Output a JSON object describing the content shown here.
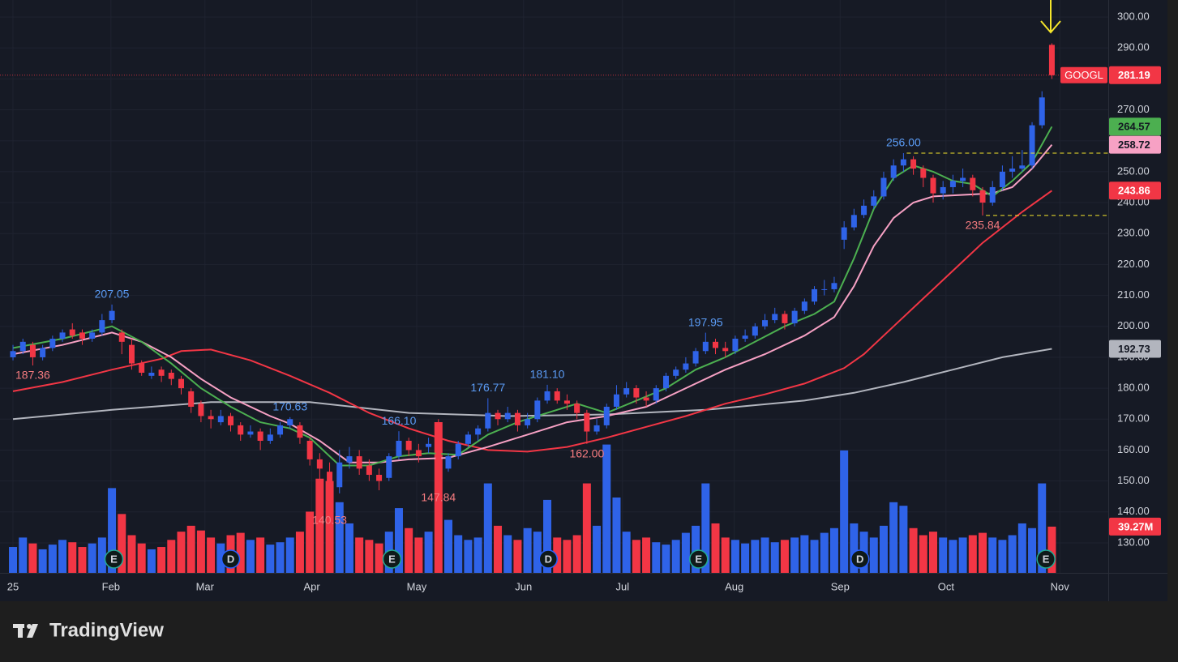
{
  "chart_data": {
    "type": "candlestick",
    "symbol": "GOOGL",
    "up_color": "#2f63e8",
    "down_color": "#f23645",
    "xlim": [
      -0.33,
      110.7
    ],
    "ylim": [
      120.3,
      305.5
    ],
    "grid": true,
    "xticks": [
      {
        "value": 0,
        "label": "25"
      },
      {
        "value": 9.9,
        "label": "Feb"
      },
      {
        "value": 19.4,
        "label": "Mar"
      },
      {
        "value": 30.2,
        "label": "Apr"
      },
      {
        "value": 40.8,
        "label": "May"
      },
      {
        "value": 51.6,
        "label": "Jun"
      },
      {
        "value": 61.6,
        "label": "Jul"
      },
      {
        "value": 72.9,
        "label": "Aug"
      },
      {
        "value": 83.6,
        "label": "Sep"
      },
      {
        "value": 94.3,
        "label": "Oct"
      },
      {
        "value": 105.8,
        "label": "Nov"
      }
    ],
    "yticks": [
      {
        "value": 130,
        "label": "130.00"
      },
      {
        "value": 140,
        "label": "140.00"
      },
      {
        "value": 150,
        "label": "150.00"
      },
      {
        "value": 160,
        "label": "160.00"
      },
      {
        "value": 170,
        "label": "170.00"
      },
      {
        "value": 180,
        "label": "180.00"
      },
      {
        "value": 190,
        "label": "190.00"
      },
      {
        "value": 200,
        "label": "200.00"
      },
      {
        "value": 210,
        "label": "210.00"
      },
      {
        "value": 220,
        "label": "220.00"
      },
      {
        "value": 230,
        "label": "230.00"
      },
      {
        "value": 240,
        "label": "240.00"
      },
      {
        "value": 250,
        "label": "250.00"
      },
      {
        "value": 260,
        "label": "260.00"
      },
      {
        "value": 270,
        "label": "270.00"
      },
      {
        "value": 280,
        "label": "280.00"
      },
      {
        "value": 290,
        "label": "290.00"
      },
      {
        "value": 300,
        "label": "300.00"
      }
    ],
    "ohlc": [
      [
        190,
        194,
        189,
        192
      ],
      [
        192,
        196,
        191,
        195
      ],
      [
        194,
        195,
        187.36,
        190
      ],
      [
        190,
        194,
        189,
        193
      ],
      [
        193,
        197,
        192,
        196
      ],
      [
        196,
        199,
        195,
        198
      ],
      [
        199,
        201,
        196,
        197
      ],
      [
        198,
        199,
        194,
        196
      ],
      [
        196,
        199,
        195,
        198
      ],
      [
        198,
        204,
        197,
        202
      ],
      [
        202,
        207.05,
        201,
        205
      ],
      [
        198,
        199,
        191,
        195
      ],
      [
        194,
        196,
        186,
        188
      ],
      [
        188,
        189,
        184,
        185
      ],
      [
        184,
        187,
        183,
        185
      ],
      [
        186,
        187,
        182,
        184
      ],
      [
        185,
        186,
        181,
        183
      ],
      [
        183,
        184,
        178,
        180
      ],
      [
        179,
        180,
        172,
        174
      ],
      [
        175,
        176,
        169,
        171
      ],
      [
        171,
        173,
        167,
        170
      ],
      [
        169,
        173,
        168,
        171
      ],
      [
        171,
        172,
        166,
        168
      ],
      [
        168,
        169,
        163,
        165
      ],
      [
        165,
        168,
        164,
        166
      ],
      [
        166,
        167,
        160,
        163
      ],
      [
        163,
        167,
        162,
        165
      ],
      [
        165,
        169,
        164,
        168
      ],
      [
        168,
        170.63,
        167,
        170
      ],
      [
        168,
        169,
        162,
        164
      ],
      [
        163,
        164,
        155,
        157
      ],
      [
        157,
        159,
        150,
        154
      ],
      [
        153,
        156,
        140.53,
        148
      ],
      [
        148,
        160,
        146,
        156
      ],
      [
        156,
        161,
        154,
        158
      ],
      [
        158,
        160,
        152,
        154
      ],
      [
        155,
        157,
        150,
        152
      ],
      [
        152,
        154,
        147,
        150
      ],
      [
        151,
        159,
        150,
        158
      ],
      [
        158,
        166.1,
        157,
        163
      ],
      [
        163,
        164,
        158,
        160
      ],
      [
        160,
        162,
        156,
        158
      ],
      [
        161,
        164,
        159,
        162
      ],
      [
        162,
        170,
        147.84,
        154
      ],
      [
        154,
        159,
        153,
        158
      ],
      [
        158,
        163,
        157,
        162
      ],
      [
        162,
        166,
        161,
        165
      ],
      [
        165,
        168,
        163,
        167
      ],
      [
        167,
        176.77,
        166,
        172
      ],
      [
        172,
        173,
        168,
        170
      ],
      [
        170,
        174,
        169,
        172
      ],
      [
        172,
        173,
        166,
        168
      ],
      [
        168,
        172,
        167,
        170
      ],
      [
        170,
        177,
        169,
        176
      ],
      [
        176,
        181.1,
        175,
        179
      ],
      [
        179,
        180,
        175,
        176
      ],
      [
        176,
        178,
        173,
        175
      ],
      [
        175,
        176,
        170,
        172
      ],
      [
        172,
        173,
        162,
        166
      ],
      [
        166,
        170,
        165,
        168
      ],
      [
        168,
        175,
        167,
        174
      ],
      [
        174,
        181,
        173,
        178
      ],
      [
        178,
        182,
        177,
        180
      ],
      [
        180,
        181,
        175,
        177
      ],
      [
        177,
        179,
        174,
        176
      ],
      [
        176,
        181,
        175,
        180
      ],
      [
        180,
        185,
        179,
        184
      ],
      [
        184,
        187,
        183,
        186
      ],
      [
        186,
        190,
        185,
        188
      ],
      [
        188,
        193,
        187,
        192
      ],
      [
        192,
        197.95,
        191,
        195
      ],
      [
        195,
        196,
        191,
        193
      ],
      [
        193,
        195,
        190,
        192
      ],
      [
        192,
        197,
        191,
        196
      ],
      [
        196,
        199,
        195,
        197
      ],
      [
        197,
        201,
        196,
        200
      ],
      [
        200,
        204,
        199,
        202
      ],
      [
        202,
        206,
        201,
        204
      ],
      [
        204,
        205,
        199,
        201
      ],
      [
        201,
        206,
        200,
        205
      ],
      [
        205,
        209,
        204,
        208
      ],
      [
        208,
        213,
        207,
        212
      ],
      [
        212,
        215,
        210,
        212
      ],
      [
        212,
        216,
        211,
        214
      ],
      [
        228,
        234,
        225,
        232
      ],
      [
        232,
        238,
        231,
        236
      ],
      [
        236,
        241,
        235,
        239
      ],
      [
        239,
        244,
        238,
        242
      ],
      [
        242,
        250,
        241,
        248
      ],
      [
        248,
        254,
        247,
        252
      ],
      [
        252,
        256,
        250,
        254
      ],
      [
        254,
        255,
        249,
        251
      ],
      [
        251,
        252,
        245,
        248
      ],
      [
        248,
        249,
        240,
        243
      ],
      [
        243,
        247,
        241,
        245
      ],
      [
        245,
        249,
        243,
        247
      ],
      [
        247,
        251,
        245,
        248
      ],
      [
        248,
        249,
        242,
        244
      ],
      [
        244,
        245,
        235.84,
        240
      ],
      [
        240,
        247,
        239,
        245
      ],
      [
        245,
        252,
        244,
        250
      ],
      [
        250,
        255,
        248,
        251
      ],
      [
        251,
        257,
        250,
        252
      ],
      [
        252,
        266,
        251,
        265
      ],
      [
        265,
        276,
        264,
        274
      ],
      [
        291,
        291.5,
        280,
        281.19
      ]
    ],
    "volume": {
      "values": [
        22,
        30,
        25,
        20,
        24,
        28,
        26,
        22,
        25,
        30,
        72,
        50,
        32,
        25,
        20,
        22,
        28,
        35,
        40,
        36,
        30,
        25,
        32,
        34,
        28,
        30,
        24,
        26,
        30,
        35,
        52,
        80,
        78,
        60,
        42,
        30,
        28,
        25,
        35,
        55,
        38,
        30,
        35,
        128,
        45,
        32,
        28,
        30,
        76,
        40,
        32,
        28,
        38,
        35,
        62,
        30,
        28,
        32,
        76,
        40,
        109,
        64,
        35,
        28,
        30,
        26,
        24,
        28,
        34,
        40,
        76,
        42,
        30,
        28,
        25,
        28,
        30,
        26,
        28,
        30,
        32,
        28,
        34,
        38,
        104,
        42,
        35,
        30,
        40,
        60,
        57,
        38,
        32,
        35,
        30,
        28,
        30,
        32,
        34,
        30,
        28,
        32,
        42,
        38,
        76,
        39.27
      ],
      "last_label": "39.27M"
    },
    "moving_averages": [
      {
        "color": "#b2b5be",
        "x": [
          0,
          10,
          20,
          30,
          40,
          50,
          60,
          70,
          80,
          85,
          90,
          95,
          100,
          105
        ],
        "values": [
          170,
          173,
          175.5,
          175.5,
          172,
          171,
          171.5,
          173,
          176,
          178.5,
          182,
          186,
          190,
          192.73
        ]
      },
      {
        "color": "#f23645",
        "x": [
          0,
          5,
          10,
          15,
          17,
          20,
          24,
          28,
          32,
          36,
          40,
          44,
          48,
          52,
          56,
          60,
          64,
          68,
          72,
          76,
          80,
          84,
          86,
          88,
          90,
          92,
          94,
          96,
          98,
          100,
          102,
          105
        ],
        "values": [
          179,
          182,
          186,
          189.5,
          192,
          192.5,
          189,
          184,
          178.5,
          172,
          167,
          163,
          160,
          159.5,
          161,
          164,
          167.5,
          171,
          175,
          178,
          181.5,
          186.5,
          191,
          197,
          203,
          209,
          215,
          221,
          227,
          232,
          237,
          243.86
        ]
      },
      {
        "color": "#f7a1c4",
        "x": [
          0,
          5,
          10,
          13,
          16,
          19,
          22,
          26,
          28,
          31,
          34,
          37,
          40,
          44,
          48,
          52,
          56,
          60,
          64,
          68,
          72,
          76,
          80,
          83,
          85,
          87,
          89,
          91,
          93,
          96,
          99,
          101,
          103,
          105
        ],
        "values": [
          191,
          194,
          198,
          195,
          190,
          183,
          177,
          171,
          168.5,
          163,
          156,
          156,
          157,
          157.5,
          161,
          165,
          169,
          171,
          174,
          180,
          186,
          191,
          197,
          203,
          213,
          226,
          235,
          240,
          242,
          242.5,
          243,
          245,
          251,
          258.72
        ]
      },
      {
        "color": "#4caf50",
        "x": [
          0,
          5,
          10,
          13,
          16,
          19,
          22,
          25,
          28,
          30,
          33,
          36,
          39,
          42,
          45,
          48,
          51,
          54,
          57,
          60,
          63,
          66,
          69,
          72,
          75,
          78,
          81,
          83,
          85,
          87,
          89,
          91,
          93,
          95,
          97,
          99,
          101,
          103,
          105
        ],
        "values": [
          193,
          196,
          200,
          195,
          188,
          180,
          174,
          169,
          167,
          164,
          155,
          155,
          158,
          159,
          158.5,
          165,
          169,
          172,
          175,
          172,
          176,
          180,
          186,
          190,
          195,
          200,
          204,
          208,
          222,
          238,
          248,
          252,
          250,
          247,
          246,
          242,
          247,
          253,
          264.57
        ]
      }
    ],
    "annotations": [
      {
        "x": 2,
        "value": 187.36,
        "kind": "low"
      },
      {
        "x": 10,
        "value": 207.05,
        "kind": "high"
      },
      {
        "x": 28,
        "value": 170.63,
        "kind": "high"
      },
      {
        "x": 32,
        "value": 140.53,
        "kind": "low"
      },
      {
        "x": 39,
        "value": 166.1,
        "label": "166.10",
        "kind": "high"
      },
      {
        "x": 43,
        "value": 147.84,
        "kind": "low"
      },
      {
        "x": 48,
        "value": 176.77,
        "kind": "high"
      },
      {
        "x": 54,
        "value": 181.1,
        "label": "181.10",
        "kind": "high"
      },
      {
        "x": 58,
        "value": 162,
        "label": "162.00",
        "kind": "low"
      },
      {
        "x": 70,
        "value": 197.95,
        "kind": "high"
      },
      {
        "x": 90,
        "value": 256,
        "label": "256.00",
        "kind": "high",
        "level": true
      },
      {
        "x": 98,
        "value": 235.84,
        "kind": "low",
        "level": true
      }
    ],
    "events": [
      {
        "x": 10.2,
        "label": "E",
        "color": "#22ab94"
      },
      {
        "x": 22,
        "label": "D",
        "color": "#2962ff"
      },
      {
        "x": 38.3,
        "label": "E",
        "color": "#22ab94"
      },
      {
        "x": 54.1,
        "label": "D",
        "color": "#2962ff"
      },
      {
        "x": 69.3,
        "label": "E",
        "color": "#22ab94"
      },
      {
        "x": 85.6,
        "label": "D",
        "color": "#2962ff"
      },
      {
        "x": 104.4,
        "label": "E",
        "color": "#22ab94"
      }
    ],
    "branding": "TradingView"
  }
}
